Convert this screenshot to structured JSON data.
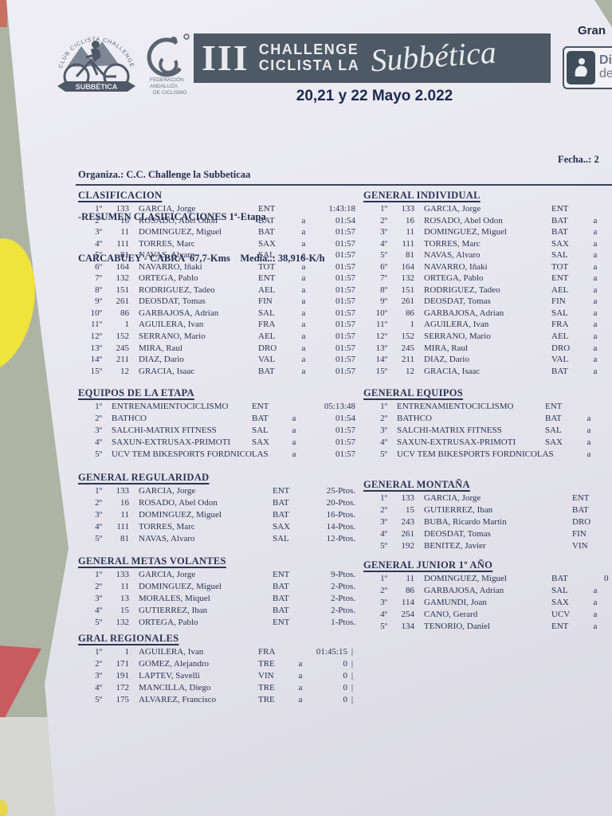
{
  "banner": {
    "roman": "III",
    "line1": "CHALLENGE",
    "line2": "CICLISTA LA",
    "script": "Subbética"
  },
  "date_band": "20,21 y 22 Mayo 2.022",
  "gran_label": "Gran",
  "dip_logo": {
    "line1": "Di",
    "line2": "de"
  },
  "club_logo": {
    "arc_text": "CLUB CICLISTA CHALLENGE LA",
    "ribbon": "SUBBÉTICA"
  },
  "federation_logo": {
    "line1": "FEDERACIÓN",
    "line2": "ANDALUZA",
    "line3": "DE CICLISMO"
  },
  "info": {
    "organiza": "Organiza.: C.C. Challenge la Subbeticaa",
    "resumen": "-RESUMEN CLASIFICACIONES 1ª-Etapa",
    "etapa": "CARCABUEY - CABRA  67,7-Kms    Media..: 38,916-K/h",
    "fecha": "Fecha..: 2"
  },
  "sections": {
    "clasificacion": {
      "title": "CLASIFICACION",
      "rows": [
        {
          "pos": "1º",
          "dorsal": "133",
          "name": "GARCIA, Jorge",
          "team": "ENT",
          "gap": "",
          "time": "1:43:18"
        },
        {
          "pos": "2º",
          "dorsal": "16",
          "name": "ROSADO, Abel Odon",
          "team": "BAT",
          "gap": "a",
          "time": "01:54"
        },
        {
          "pos": "3º",
          "dorsal": "11",
          "name": "DOMINGUEZ, Miguel",
          "team": "BAT",
          "gap": "a",
          "time": "01:57"
        },
        {
          "pos": "4º",
          "dorsal": "111",
          "name": "TORRES, Marc",
          "team": "SAX",
          "gap": "a",
          "time": "01:57"
        },
        {
          "pos": "5º",
          "dorsal": "81",
          "name": "NAVAS, Alvaro",
          "team": "SAL",
          "gap": "a",
          "time": "01:57"
        },
        {
          "pos": "6º",
          "dorsal": "164",
          "name": "NAVARRO, Iñaki",
          "team": "TOT",
          "gap": "a",
          "time": "01:57"
        },
        {
          "pos": "7º",
          "dorsal": "132",
          "name": "ORTEGA, Pablo",
          "team": "ENT",
          "gap": "a",
          "time": "01:57"
        },
        {
          "pos": "8º",
          "dorsal": "151",
          "name": "RODRIGUEZ, Tadeo",
          "team": "AEL",
          "gap": "a",
          "time": "01:57"
        },
        {
          "pos": "9º",
          "dorsal": "261",
          "name": "DEOSDAT, Tomas",
          "team": "FIN",
          "gap": "a",
          "time": "01:57"
        },
        {
          "pos": "10º",
          "dorsal": "86",
          "name": "GARBAJOSA, Adrian",
          "team": "SAL",
          "gap": "a",
          "time": "01:57"
        },
        {
          "pos": "11º",
          "dorsal": "1",
          "name": "AGUILERA, Ivan",
          "team": "FRA",
          "gap": "a",
          "time": "01:57"
        },
        {
          "pos": "12º",
          "dorsal": "152",
          "name": "SERRANO, Mario",
          "team": "AEL",
          "gap": "a",
          "time": "01:57"
        },
        {
          "pos": "13º",
          "dorsal": "245",
          "name": "MIRA, Raul",
          "team": "DRO",
          "gap": "a",
          "time": "01:57"
        },
        {
          "pos": "14º",
          "dorsal": "211",
          "name": "DIAZ, Dario",
          "team": "VAL",
          "gap": "a",
          "time": "01:57"
        },
        {
          "pos": "15º",
          "dorsal": "12",
          "name": "GRACIA, Isaac",
          "team": "BAT",
          "gap": "a",
          "time": "01:57"
        }
      ]
    },
    "general_individual": {
      "title": "GENERAL INDIVIDUAL",
      "rows": [
        {
          "pos": "1º",
          "dorsal": "133",
          "name": "GARCIA, Jorge",
          "team": "ENT",
          "gap": "",
          "time": ""
        },
        {
          "pos": "2º",
          "dorsal": "16",
          "name": "ROSADO, Abel Odon",
          "team": "BAT",
          "gap": "a",
          "time": ""
        },
        {
          "pos": "3º",
          "dorsal": "11",
          "name": "DOMINGUEZ, Miguel",
          "team": "BAT",
          "gap": "a",
          "time": ""
        },
        {
          "pos": "4º",
          "dorsal": "111",
          "name": "TORRES, Marc",
          "team": "SAX",
          "gap": "a",
          "time": ""
        },
        {
          "pos": "5º",
          "dorsal": "81",
          "name": "NAVAS, Alvaro",
          "team": "SAL",
          "gap": "a",
          "time": ""
        },
        {
          "pos": "6º",
          "dorsal": "164",
          "name": "NAVARRO, Iñaki",
          "team": "TOT",
          "gap": "a",
          "time": ""
        },
        {
          "pos": "7º",
          "dorsal": "132",
          "name": "ORTEGA, Pablo",
          "team": "ENT",
          "gap": "a",
          "time": ""
        },
        {
          "pos": "8º",
          "dorsal": "151",
          "name": "RODRIGUEZ, Tadeo",
          "team": "AEL",
          "gap": "a",
          "time": ""
        },
        {
          "pos": "9º",
          "dorsal": "261",
          "name": "DEOSDAT, Tomas",
          "team": "FIN",
          "gap": "a",
          "time": ""
        },
        {
          "pos": "10º",
          "dorsal": "86",
          "name": "GARBAJOSA, Adrian",
          "team": "SAL",
          "gap": "a",
          "time": ""
        },
        {
          "pos": "11º",
          "dorsal": "1",
          "name": "AGUILERA, Ivan",
          "team": "FRA",
          "gap": "a",
          "time": ""
        },
        {
          "pos": "12º",
          "dorsal": "152",
          "name": "SERRANO, Mario",
          "team": "AEL",
          "gap": "a",
          "time": ""
        },
        {
          "pos": "13º",
          "dorsal": "245",
          "name": "MIRA, Raul",
          "team": "DRO",
          "gap": "a",
          "time": ""
        },
        {
          "pos": "14º",
          "dorsal": "211",
          "name": "DIAZ, Dario",
          "team": "VAL",
          "gap": "a",
          "time": ""
        },
        {
          "pos": "15º",
          "dorsal": "12",
          "name": "GRACIA, Isaac",
          "team": "BAT",
          "gap": "a",
          "time": ""
        }
      ]
    },
    "equipos_etapa": {
      "title": "EQUIPOS DE LA ETAPA",
      "rows": [
        {
          "pos": "1º",
          "name": "ENTRENAMIENTOCICLISMO",
          "code": "ENT",
          "gap": "",
          "time": "05:13:48"
        },
        {
          "pos": "2º",
          "name": "BATHCO",
          "code": "BAT",
          "gap": "a",
          "time": "01:54"
        },
        {
          "pos": "3º",
          "name": "SALCHI-MATRIX FITNESS",
          "code": "SAL",
          "gap": "a",
          "time": "01:57"
        },
        {
          "pos": "4º",
          "name": "SAXUN-EXTRUSAX-PRIMOTI",
          "code": "SAX",
          "gap": "a",
          "time": "01:57"
        },
        {
          "pos": "5º",
          "name": "UCV TEM BIKESPORTS FORDNICOLAS",
          "code": "",
          "gap": "a",
          "time": "01:57"
        }
      ]
    },
    "general_equipos": {
      "title": "GENERAL EQUIPOS",
      "rows": [
        {
          "pos": "1º",
          "name": "ENTRENAMIENTOCICLISMO",
          "code": "ENT",
          "gap": "",
          "time": ""
        },
        {
          "pos": "2º",
          "name": "BATHCO",
          "code": "BAT",
          "gap": "a",
          "time": ""
        },
        {
          "pos": "3º",
          "name": "SALCHI-MATRIX FITNESS",
          "code": "SAL",
          "gap": "a",
          "time": ""
        },
        {
          "pos": "4º",
          "name": "SAXUN-EXTRUSAX-PRIMOTI",
          "code": "SAX",
          "gap": "a",
          "time": ""
        },
        {
          "pos": "5º",
          "name": "UCV TEM BIKESPORTS FORDNICOLAS",
          "code": "",
          "gap": "a",
          "time": ""
        }
      ]
    },
    "general_regularidad": {
      "title": "GENERAL REGULARIDAD",
      "rows": [
        {
          "pos": "1º",
          "dorsal": "133",
          "name": "GARCIA, Jorge",
          "team": "ENT",
          "points": "25-Ptos."
        },
        {
          "pos": "2º",
          "dorsal": "16",
          "name": "ROSADO, Abel Odon",
          "team": "BAT",
          "points": "20-Ptos."
        },
        {
          "pos": "3º",
          "dorsal": "11",
          "name": "DOMINGUEZ, Miguel",
          "team": "BAT",
          "points": "16-Ptos."
        },
        {
          "pos": "4º",
          "dorsal": "111",
          "name": "TORRES, Marc",
          "team": "SAX",
          "points": "14-Ptos."
        },
        {
          "pos": "5º",
          "dorsal": "81",
          "name": "NAVAS, Alvaro",
          "team": "SAL",
          "points": "12-Ptos."
        }
      ]
    },
    "general_montana": {
      "title": "GENERAL MONTAÑA",
      "rows": [
        {
          "pos": "1º",
          "dorsal": "133",
          "name": "GARCIA, Jorge",
          "team": "ENT"
        },
        {
          "pos": "2º",
          "dorsal": "15",
          "name": "GUTIERREZ, Iban",
          "team": "BAT"
        },
        {
          "pos": "3º",
          "dorsal": "243",
          "name": "BUBA, Ricardo Martin",
          "team": "DRO"
        },
        {
          "pos": "4º",
          "dorsal": "261",
          "name": "DEOSDAT, Tomas",
          "team": "FIN"
        },
        {
          "pos": "5º",
          "dorsal": "192",
          "name": "BENITEZ, Javier",
          "team": "VIN"
        }
      ]
    },
    "metas_volantes": {
      "title": "GENERAL METAS VOLANTES",
      "rows": [
        {
          "pos": "1º",
          "dorsal": "133",
          "name": "GARCIA, Jorge",
          "team": "ENT",
          "points": "9-Ptos."
        },
        {
          "pos": "2º",
          "dorsal": "11",
          "name": "DOMINGUEZ, Miguel",
          "team": "BAT",
          "points": "2-Ptos."
        },
        {
          "pos": "3º",
          "dorsal": "13",
          "name": "MORALES, Miquel",
          "team": "BAT",
          "points": "2-Ptos."
        },
        {
          "pos": "4º",
          "dorsal": "15",
          "name": "GUTIERREZ, Iban",
          "team": "BAT",
          "points": "2-Ptos."
        },
        {
          "pos": "5º",
          "dorsal": "132",
          "name": "ORTEGA, Pablo",
          "team": "ENT",
          "points": "1-Ptos."
        }
      ]
    },
    "general_junior": {
      "title": "GENERAL JUNIOR 1º AÑO",
      "rows": [
        {
          "pos": "1º",
          "dorsal": "11",
          "name": "DOMINGUEZ, Miguel",
          "team": "BAT",
          "gap": "",
          "time": "0"
        },
        {
          "pos": "2º",
          "dorsal": "86",
          "name": "GARBAJOSA, Adrian",
          "team": "SAL",
          "gap": "a",
          "time": ""
        },
        {
          "pos": "3º",
          "dorsal": "114",
          "name": "GAMUNDI, Joan",
          "team": "SAX",
          "gap": "a",
          "time": ""
        },
        {
          "pos": "4º",
          "dorsal": "254",
          "name": "CANO, Gerard",
          "team": "UCV",
          "gap": "a",
          "time": ""
        },
        {
          "pos": "5º",
          "dorsal": "134",
          "name": "TENORIO, Daniel",
          "team": "ENT",
          "gap": "a",
          "time": ""
        }
      ]
    },
    "gral_regionales": {
      "title": "GRAL REGIONALES",
      "rows": [
        {
          "pos": "1º",
          "dorsal": "1",
          "name": "AGUILERA, Ivan",
          "team": "FRA",
          "gap": "",
          "time": "01:45:15",
          "bar": "|"
        },
        {
          "pos": "2º",
          "dorsal": "171",
          "name": "GOMEZ, Alejandro",
          "team": "TRE",
          "gap": "a",
          "time": "0",
          "bar": "|"
        },
        {
          "pos": "3º",
          "dorsal": "191",
          "name": "LAPTEV, Savelli",
          "team": "VIN",
          "gap": "a",
          "time": "0",
          "bar": "|"
        },
        {
          "pos": "4º",
          "dorsal": "172",
          "name": "MANCILLA, Diego",
          "team": "TRE",
          "gap": "a",
          "time": "0",
          "bar": "|"
        },
        {
          "pos": "5º",
          "dorsal": "175",
          "name": "ALVAREZ, Francisco",
          "team": "TRE",
          "gap": "a",
          "time": "0",
          "bar": "|"
        }
      ]
    }
  }
}
